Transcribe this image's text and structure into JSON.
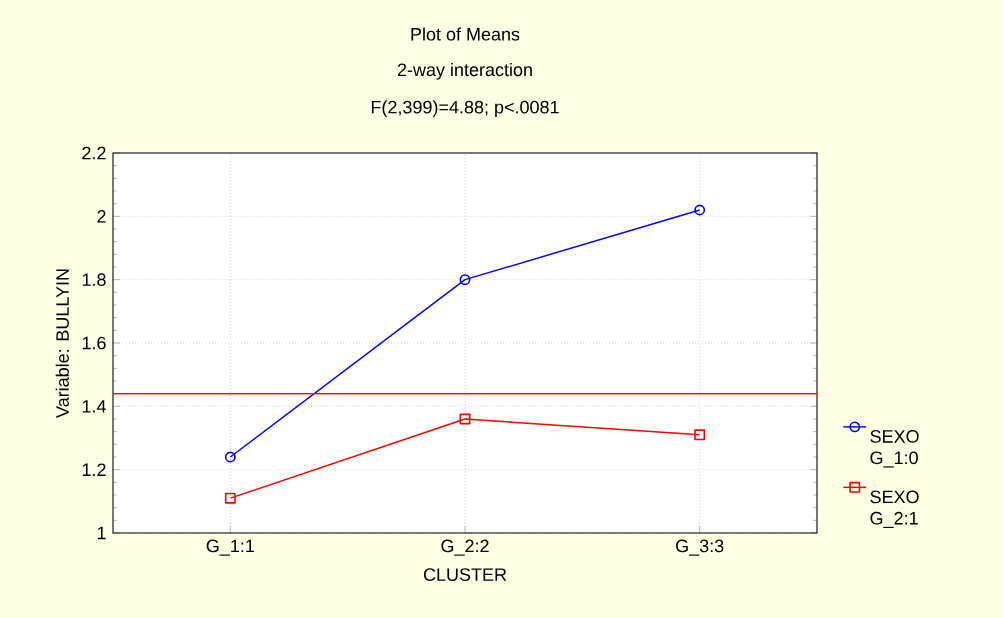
{
  "chart_data": {
    "type": "line",
    "title": "Plot of Means",
    "subtitle": "2-way interaction",
    "annotations": [
      "F(2,399)=4.88; p<.0081"
    ],
    "xlabel": "CLUSTER",
    "ylabel": "Variable: BULLYIN",
    "categories": [
      "G_1:1",
      "G_2:2",
      "G_3:3"
    ],
    "series": [
      {
        "name": "SEXO G_1:0",
        "color": "#0000ff",
        "marker": "circle",
        "values": [
          1.24,
          1.8,
          2.02
        ]
      },
      {
        "name": "SEXO G_2:1",
        "color": "#ff0000",
        "marker": "square",
        "values": [
          1.11,
          1.36,
          1.31
        ]
      }
    ],
    "ylim": [
      1,
      2.2
    ],
    "yticks": [
      1,
      1.2,
      1.4,
      1.6,
      1.8,
      2,
      2.2
    ],
    "ref_lines": [
      {
        "axis": "y",
        "value": 1.44,
        "color": "#ff0000"
      }
    ],
    "grid": true,
    "legend": "right",
    "line_style": "solid"
  }
}
